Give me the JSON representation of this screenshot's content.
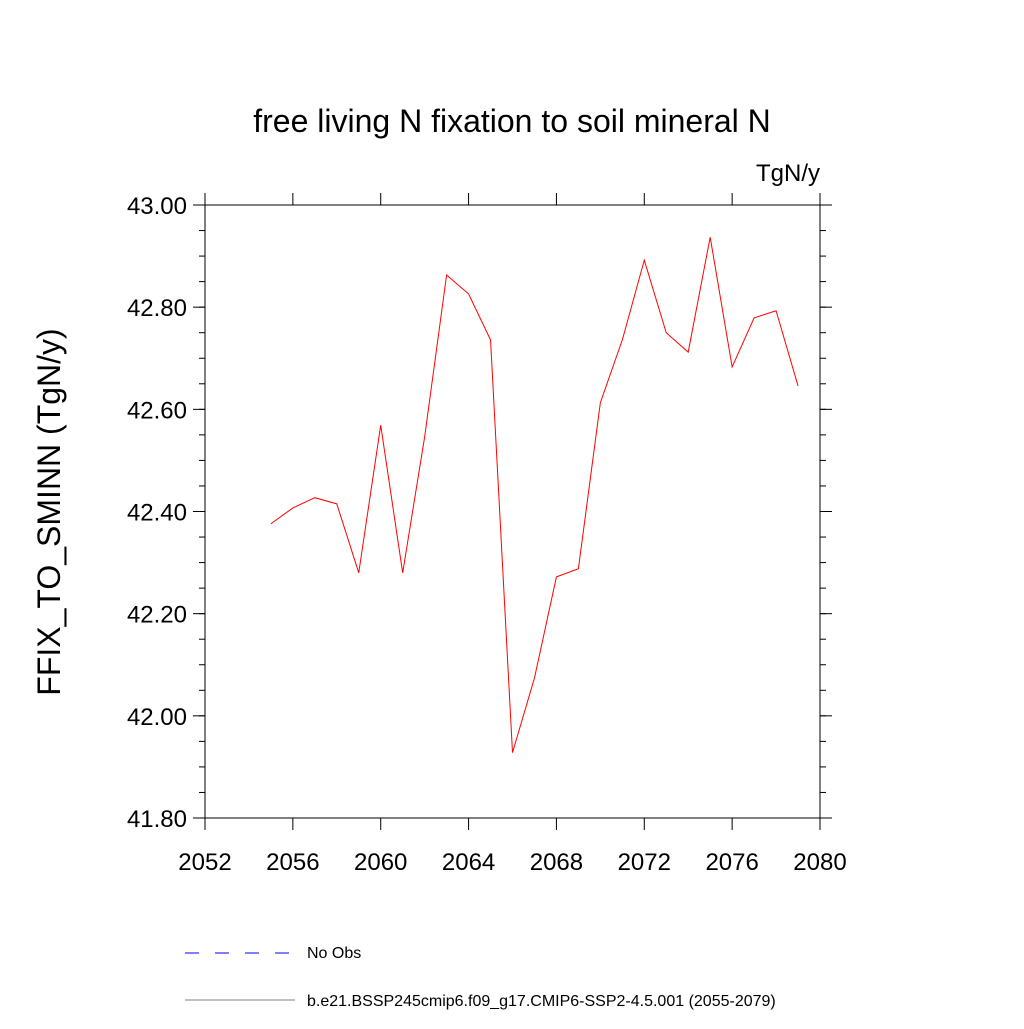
{
  "chart_data": {
    "type": "line",
    "title": "free living N fixation to soil mineral N",
    "units_label": "TgN/y",
    "ylabel": "FFIX_TO_SMINN  (TgN/y)",
    "xlabel": "",
    "xlim": [
      2052,
      2080
    ],
    "ylim": [
      41.8,
      43.0
    ],
    "x_ticks": [
      "2052",
      "2056",
      "2060",
      "2064",
      "2068",
      "2072",
      "2076",
      "2080"
    ],
    "y_ticks": [
      "41.80",
      "42.00",
      "42.20",
      "42.40",
      "42.60",
      "42.80",
      "43.00"
    ],
    "grid": false,
    "x": [
      2055,
      2056,
      2057,
      2058,
      2059,
      2060,
      2061,
      2062,
      2063,
      2064,
      2065,
      2066,
      2067,
      2068,
      2069,
      2070,
      2071,
      2072,
      2073,
      2074,
      2075,
      2076,
      2077,
      2078,
      2079
    ],
    "series": [
      {
        "name": "b.e21.BSSP245cmip6.f09_g17.CMIP6-SSP2-4.5.001 (2055-2079)",
        "color": "#ff0000",
        "values": [
          42.376,
          42.407,
          42.427,
          42.415,
          42.28,
          42.569,
          42.28,
          42.546,
          42.863,
          42.826,
          42.736,
          41.928,
          42.074,
          42.272,
          42.288,
          42.613,
          42.736,
          42.892,
          42.75,
          42.712,
          42.937,
          42.683,
          42.779,
          42.793,
          42.646
        ]
      }
    ],
    "legend": {
      "placement": "bottom",
      "entries": [
        {
          "label": "No Obs",
          "color": "#0000ff",
          "style": "dashed"
        },
        {
          "label": "b.e21.BSSP245cmip6.f09_g17.CMIP6-SSP2-4.5.001 (2055-2079)",
          "color": "#000000",
          "style": "solid"
        }
      ]
    }
  }
}
